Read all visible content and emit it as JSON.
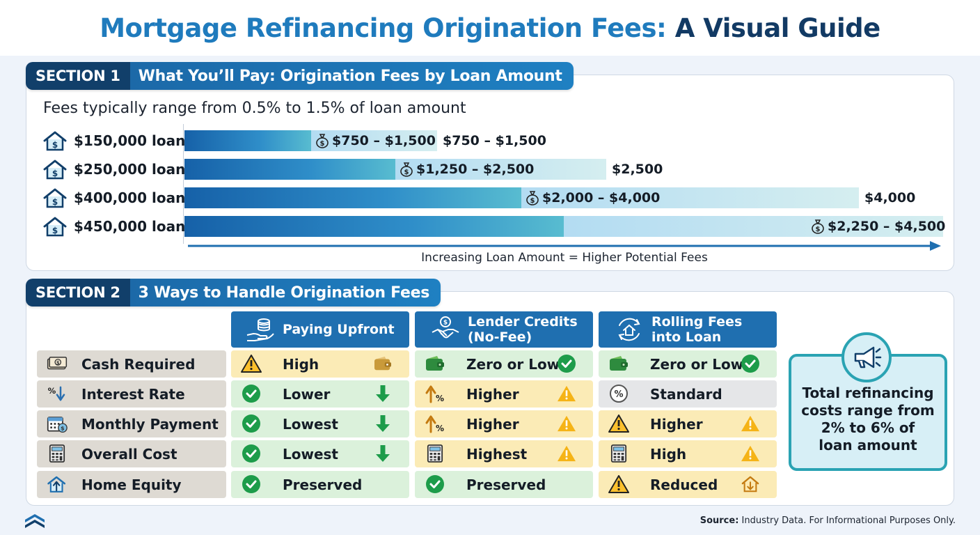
{
  "title": {
    "part1": "Mortgage Refinancing Origination Fees:",
    "part2": "A Visual Guide"
  },
  "section1": {
    "number": "SECTION 1",
    "name": "What You’ll Pay: Origination Fees by Loan Amount",
    "subtitle": "Fees typically range from 0.5% to 1.5% of loan amount",
    "axis_caption": "Increasing Loan Amount = Higher Potential Fees",
    "loans": [
      {
        "label": "$150,000 loan",
        "range_label": "$750 – $1,500",
        "max_label": "$750 – $1,500",
        "min_fee": 750,
        "max_fee": 1500
      },
      {
        "label": "$250,000 loan",
        "range_label": "$1,250 – $2,500",
        "max_label": "$2,500",
        "min_fee": 1250,
        "max_fee": 2500
      },
      {
        "label": "$400,000 loan",
        "range_label": "$2,000 – $4,000",
        "max_label": "$4,000",
        "min_fee": 2000,
        "max_fee": 4000
      },
      {
        "label": "$450,000 loan",
        "range_label": "$2,250 – $4,500",
        "max_label": "",
        "min_fee": 2250,
        "max_fee": 4500
      }
    ]
  },
  "section2": {
    "number": "SECTION 2",
    "name": "3 Ways to Handle Origination Fees",
    "columns": [
      {
        "label": "Paying Upfront",
        "icon": "coins-hand-icon"
      },
      {
        "label": "Lender Credits\n(No-Fee)",
        "icon": "handshake-icon"
      },
      {
        "label": "Rolling Fees\ninto Loan",
        "icon": "house-cycle-icon"
      }
    ],
    "rows": [
      {
        "label": "Cash Required",
        "icon": "cash-icon",
        "cells": [
          {
            "text": "High",
            "tone": "yellow",
            "icon": "warning-icon",
            "right": "wallet-icon"
          },
          {
            "text": "Zero or Low",
            "tone": "green",
            "icon": "wallet-icon",
            "right": "check-icon"
          },
          {
            "text": "Zero or Low",
            "tone": "green",
            "icon": "wallet-icon",
            "right": "check-icon"
          }
        ]
      },
      {
        "label": "Interest Rate",
        "icon": "percent-down-icon",
        "cells": [
          {
            "text": "Lower",
            "tone": "green",
            "icon": "check-icon",
            "right": "arrow-down-icon"
          },
          {
            "text": "Higher",
            "tone": "yellow",
            "icon": "percent-up-icon",
            "right": "alert-icon"
          },
          {
            "text": "Standard",
            "tone": "gray",
            "icon": "percent-icon",
            "right": ""
          }
        ]
      },
      {
        "label": "Monthly Payment",
        "icon": "calendar-icon",
        "cells": [
          {
            "text": "Lowest",
            "tone": "green",
            "icon": "check-icon",
            "right": "arrow-down-icon"
          },
          {
            "text": "Higher",
            "tone": "yellow",
            "icon": "percent-up-icon",
            "right": "alert-icon"
          },
          {
            "text": "Higher",
            "tone": "yellow",
            "icon": "warning-icon",
            "right": "alert-icon"
          }
        ]
      },
      {
        "label": "Overall Cost",
        "icon": "calculator-icon",
        "cells": [
          {
            "text": "Lowest",
            "tone": "green",
            "icon": "check-icon",
            "right": "arrow-down-icon"
          },
          {
            "text": "Highest",
            "tone": "yellow",
            "icon": "calculator-icon",
            "right": "alert-icon"
          },
          {
            "text": "High",
            "tone": "yellow",
            "icon": "calculator-icon",
            "right": "alert-icon"
          }
        ]
      },
      {
        "label": "Home Equity",
        "icon": "house-up-icon",
        "cells": [
          {
            "text": "Preserved",
            "tone": "green",
            "icon": "check-icon",
            "right": ""
          },
          {
            "text": "Preserved",
            "tone": "green",
            "icon": "check-icon",
            "right": ""
          },
          {
            "text": "Reduced",
            "tone": "yellow",
            "icon": "warning-icon",
            "right": "house-down-icon"
          }
        ]
      }
    ],
    "callout": {
      "line1": "Total refinancing costs range from",
      "emph": "2% to 6% of",
      "line3": "loan amount",
      "icon": "megaphone-icon"
    }
  },
  "footer": {
    "source_label": "Source:",
    "source_text": "Industry Data. For Informational Purposes Only.",
    "logo": "logo-icon"
  },
  "colors": {
    "brand_dark": "#113f6a",
    "brand": "#1f6fb0",
    "accent_teal": "#2aa3b3",
    "green": "#dbf1db",
    "yellow": "#fbebb6"
  }
}
